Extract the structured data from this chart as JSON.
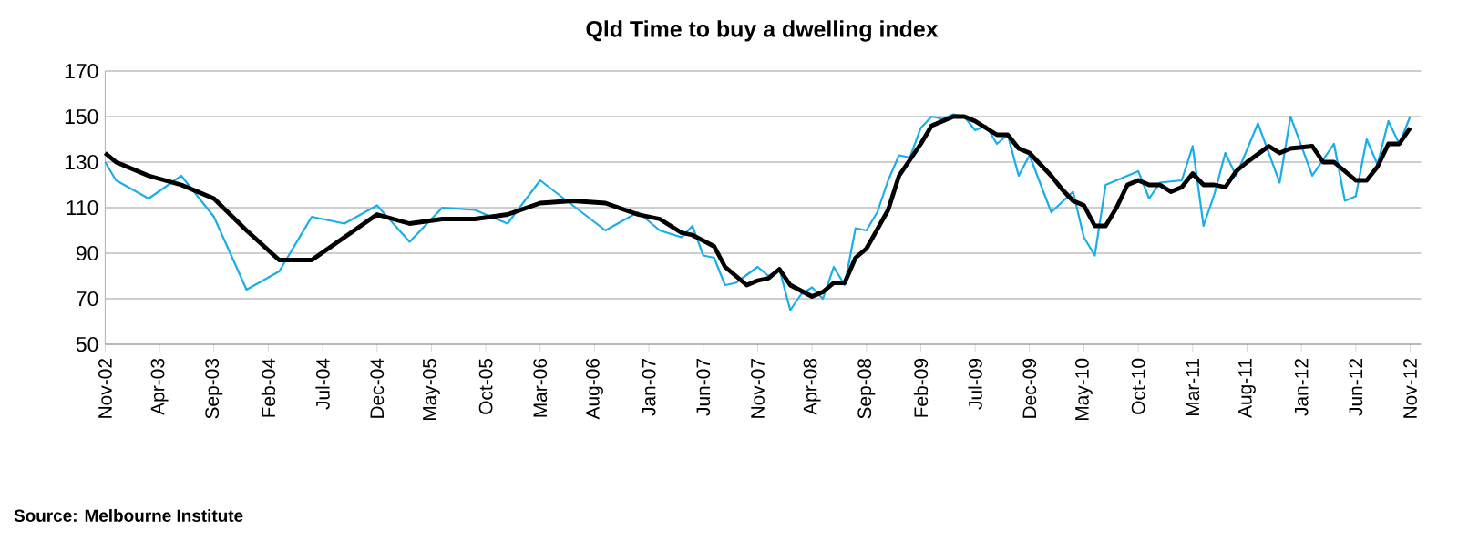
{
  "chart_data": {
    "type": "line",
    "title": "Qld Time to buy a dwelling index",
    "annotations": [
      "Source: Melbourne Institute"
    ],
    "xlim": [
      "2002-11",
      "2012-12"
    ],
    "ylim": [
      50,
      170
    ],
    "yticks": [
      50,
      70,
      90,
      110,
      130,
      150,
      170
    ],
    "grid": "y",
    "xticks": [
      {
        "value": "2002-11",
        "label": "Nov-02"
      },
      {
        "value": "2003-04",
        "label": "Apr-03"
      },
      {
        "value": "2003-09",
        "label": "Sep-03"
      },
      {
        "value": "2004-02",
        "label": "Feb-04"
      },
      {
        "value": "2004-07",
        "label": "Jul-04"
      },
      {
        "value": "2004-12",
        "label": "Dec-04"
      },
      {
        "value": "2005-05",
        "label": "May-05"
      },
      {
        "value": "2005-10",
        "label": "Oct-05"
      },
      {
        "value": "2006-03",
        "label": "Mar-06"
      },
      {
        "value": "2006-08",
        "label": "Aug-06"
      },
      {
        "value": "2007-01",
        "label": "Jan-07"
      },
      {
        "value": "2007-06",
        "label": "Jun-07"
      },
      {
        "value": "2007-11",
        "label": "Nov-07"
      },
      {
        "value": "2008-04",
        "label": "Apr-08"
      },
      {
        "value": "2008-09",
        "label": "Sep-08"
      },
      {
        "value": "2009-02",
        "label": "Feb-09"
      },
      {
        "value": "2009-07",
        "label": "Jul-09"
      },
      {
        "value": "2009-12",
        "label": "Dec-09"
      },
      {
        "value": "2010-05",
        "label": "May-10"
      },
      {
        "value": "2010-10",
        "label": "Oct-10"
      },
      {
        "value": "2011-03",
        "label": "Mar-11"
      },
      {
        "value": "2011-08",
        "label": "Aug-11"
      },
      {
        "value": "2012-01",
        "label": "Jan-12"
      },
      {
        "value": "2012-06",
        "label": "Jun-12"
      },
      {
        "value": "2012-11",
        "label": "Nov-12"
      }
    ],
    "series": [
      {
        "color": "#1aaee8",
        "x": [
          "2002-11",
          "2002-12",
          "2003-03",
          "2003-06",
          "2003-09",
          "2003-12",
          "2004-03",
          "2004-06",
          "2004-09",
          "2004-12",
          "2005-03",
          "2005-06",
          "2005-09",
          "2005-12",
          "2006-03",
          "2006-06",
          "2006-09",
          "2006-12",
          "2007-02",
          "2007-04",
          "2007-05",
          "2007-06",
          "2007-07",
          "2007-08",
          "2007-09",
          "2007-11",
          "2007-12",
          "2008-01",
          "2008-02",
          "2008-03",
          "2008-04",
          "2008-05",
          "2008-06",
          "2008-07",
          "2008-08",
          "2008-09",
          "2008-10",
          "2008-11",
          "2008-12",
          "2009-01",
          "2009-02",
          "2009-03",
          "2009-04",
          "2009-05",
          "2009-06",
          "2009-07",
          "2009-08",
          "2009-09",
          "2009-10",
          "2009-11",
          "2009-12",
          "2010-02",
          "2010-04",
          "2010-05",
          "2010-06",
          "2010-07",
          "2010-08",
          "2010-10",
          "2010-11",
          "2010-12",
          "2011-02",
          "2011-03",
          "2011-04",
          "2011-05",
          "2011-06",
          "2011-07",
          "2011-09",
          "2011-11",
          "2011-12",
          "2012-02",
          "2012-04",
          "2012-05",
          "2012-06",
          "2012-07",
          "2012-08",
          "2012-09",
          "2012-10",
          "2012-11"
        ],
        "values": [
          130,
          122,
          114,
          124,
          106,
          74,
          82,
          106,
          103,
          111,
          95,
          110,
          109,
          103,
          122,
          111,
          100,
          108,
          100,
          97,
          102,
          89,
          88,
          76,
          77,
          84,
          80,
          83,
          65,
          72,
          75,
          70,
          84,
          76,
          101,
          100,
          108,
          122,
          133,
          132,
          145,
          150,
          149,
          151,
          150,
          144,
          146,
          138,
          142,
          124,
          133,
          108,
          117,
          97,
          89,
          120,
          122,
          126,
          114,
          121,
          122,
          137,
          102,
          116,
          134,
          124,
          147,
          121,
          150,
          124,
          138,
          113,
          115,
          140,
          129,
          148,
          138,
          150
        ]
      },
      {
        "color": "#000000",
        "x": [
          "2002-11",
          "2002-12",
          "2003-03",
          "2003-06",
          "2003-09",
          "2003-12",
          "2004-03",
          "2004-06",
          "2004-09",
          "2004-12",
          "2005-03",
          "2005-06",
          "2005-09",
          "2005-12",
          "2006-03",
          "2006-06",
          "2006-09",
          "2006-12",
          "2007-02",
          "2007-04",
          "2007-05",
          "2007-07",
          "2007-08",
          "2007-10",
          "2007-11",
          "2007-12",
          "2008-01",
          "2008-02",
          "2008-04",
          "2008-05",
          "2008-06",
          "2008-07",
          "2008-08",
          "2008-09",
          "2008-11",
          "2008-12",
          "2009-02",
          "2009-03",
          "2009-05",
          "2009-06",
          "2009-07",
          "2009-08",
          "2009-09",
          "2009-10",
          "2009-11",
          "2009-12",
          "2010-01",
          "2010-02",
          "2010-03",
          "2010-04",
          "2010-05",
          "2010-06",
          "2010-07",
          "2010-08",
          "2010-09",
          "2010-10",
          "2010-11",
          "2010-12",
          "2011-01",
          "2011-02",
          "2011-03",
          "2011-04",
          "2011-05",
          "2011-06",
          "2011-07",
          "2011-08",
          "2011-10",
          "2011-11",
          "2011-12",
          "2012-02",
          "2012-03",
          "2012-04",
          "2012-05",
          "2012-06",
          "2012-07",
          "2012-08",
          "2012-09",
          "2012-10",
          "2012-11"
        ],
        "values": [
          134,
          130,
          124,
          120,
          114,
          100,
          87,
          87,
          97,
          107,
          103,
          105,
          105,
          107,
          112,
          113,
          112,
          107,
          105,
          99,
          98,
          93,
          84,
          76,
          78,
          79,
          83,
          76,
          71,
          73,
          77,
          77,
          88,
          92,
          109,
          124,
          138,
          146,
          150,
          150,
          148,
          145,
          142,
          142,
          136,
          134,
          129,
          124,
          118,
          113,
          111,
          102,
          102,
          110,
          120,
          122,
          120,
          120,
          117,
          119,
          125,
          120,
          120,
          119,
          126,
          130,
          137,
          134,
          136,
          137,
          130,
          130,
          126,
          122,
          122,
          128,
          138,
          138,
          145
        ]
      }
    ]
  }
}
